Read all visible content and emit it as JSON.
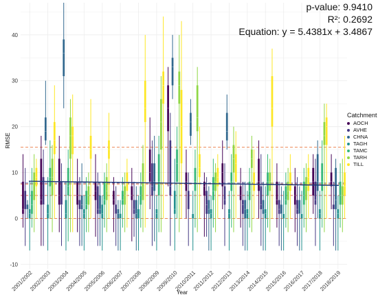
{
  "stats": {
    "pvalue": "p-value: 9.9410",
    "r2": "R²: 0.2692",
    "equation": "Equation: y = 5.4381x + 3.4867"
  },
  "chart_data": {
    "type": "box",
    "xlabel": "Year",
    "ylabel": "RMSE",
    "ylim": [
      -11,
      47
    ],
    "yticks": [
      -10,
      0,
      10,
      20,
      30,
      40
    ],
    "grid": true,
    "legend": {
      "title": "Catchment",
      "position": "right"
    },
    "categories": [
      "2001/2002",
      "2002/2003",
      "2003/2004",
      "2004/2005",
      "2005/2006",
      "2006/2007",
      "2007/2008",
      "2008/2009",
      "2009/2010",
      "2010/2011",
      "2011/2012",
      "2012/2013",
      "2013/2014",
      "2014/2015",
      "2015/2016",
      "2016/2017",
      "2017/2018",
      "2018/2019"
    ],
    "reference_lines": [
      15.5,
      7.5,
      5.0,
      0.0
    ],
    "trend_line": {
      "start": 8.1,
      "end": 7.2
    },
    "series": [
      {
        "name": "AOCH",
        "color": "#440154",
        "boxes": [
          [
            -2,
            1,
            2,
            8,
            14
          ],
          [
            -6,
            3,
            4,
            13,
            18
          ],
          [
            -3,
            3,
            5,
            13,
            18
          ],
          [
            -3,
            3,
            5,
            8,
            13
          ],
          [
            -4,
            4,
            6,
            8,
            14
          ],
          [
            -3,
            3,
            4,
            6,
            9
          ],
          [
            -5,
            4,
            5,
            7,
            11
          ],
          [
            2,
            8,
            10,
            15,
            22
          ],
          [
            7,
            19,
            24,
            29,
            33
          ],
          [
            0,
            6,
            8,
            10,
            15
          ],
          [
            -4,
            5,
            7,
            8,
            10
          ],
          [
            2,
            7,
            10,
            12,
            17
          ],
          [
            -2,
            4,
            5,
            7,
            11
          ],
          [
            0,
            6,
            8,
            13,
            17
          ],
          [
            -2,
            3,
            4,
            8,
            12
          ],
          [
            -3,
            3,
            5,
            7,
            11
          ],
          [
            1,
            5,
            8,
            11,
            14
          ],
          [
            2,
            7,
            8,
            10,
            14
          ]
        ]
      },
      {
        "name": "AVHE",
        "color": "#443983",
        "boxes": [
          [
            -6,
            2,
            2,
            6,
            11
          ],
          [
            -6,
            3,
            3,
            9,
            15
          ],
          [
            -6,
            3,
            3,
            8,
            12
          ],
          [
            -6,
            2,
            2,
            4,
            9
          ],
          [
            -6,
            1,
            2,
            7,
            10
          ],
          [
            -6,
            1,
            1,
            3,
            7
          ],
          [
            -4,
            1,
            2,
            4,
            8
          ],
          [
            -6,
            5,
            7,
            12,
            17
          ],
          [
            -6,
            5,
            7,
            17,
            23
          ],
          [
            -6,
            2,
            2,
            6,
            10
          ],
          [
            -4,
            1,
            3,
            6,
            9
          ],
          [
            -6,
            3,
            4,
            7,
            12
          ],
          [
            -6,
            1,
            3,
            4,
            8
          ],
          [
            -6,
            2,
            3,
            7,
            14
          ],
          [
            -6,
            1,
            2,
            4,
            8
          ],
          [
            -6,
            1,
            2,
            4,
            9
          ],
          [
            -6,
            3,
            4,
            8,
            13
          ],
          [
            -6,
            2,
            2,
            3,
            8
          ]
        ]
      },
      {
        "name": "CHNA",
        "color": "#31688e",
        "boxes": [
          [
            0,
            2,
            2,
            3,
            4
          ],
          [
            16,
            17,
            19,
            22,
            30
          ],
          [
            24,
            31,
            36,
            39,
            47
          ],
          [
            -6,
            2,
            3,
            5,
            12
          ],
          [
            -6,
            1,
            2,
            5,
            8
          ],
          [
            -7,
            0,
            1,
            2,
            4
          ],
          [
            -7,
            0,
            1,
            4,
            7
          ],
          [
            -5,
            6,
            8,
            12,
            18
          ],
          [
            26,
            29,
            33,
            35,
            40
          ],
          [
            16,
            18,
            21,
            23,
            26
          ],
          [
            -7,
            1,
            2,
            4,
            7
          ],
          [
            15,
            17,
            19,
            23,
            27
          ],
          [
            -7,
            0,
            2,
            4,
            8
          ],
          [
            -7,
            1,
            2,
            4,
            8
          ],
          [
            -7,
            1,
            1,
            3,
            7
          ],
          [
            -7,
            1,
            1,
            4,
            7
          ],
          [
            0,
            6,
            8,
            14,
            17
          ],
          [
            -7,
            2,
            4,
            11,
            13
          ]
        ]
      },
      {
        "name": "TAGH",
        "color": "#21908d",
        "boxes": [
          [
            -7,
            0,
            1,
            2,
            8
          ],
          [
            -7,
            0,
            1,
            3,
            9
          ],
          [
            -7,
            0,
            1,
            4,
            8
          ],
          [
            -7,
            0,
            1,
            2,
            5
          ],
          [
            -7,
            0,
            1,
            3,
            5
          ],
          [
            -7,
            0,
            0,
            1,
            4
          ],
          [
            -7,
            0,
            0,
            2,
            5
          ],
          [
            -7,
            0,
            1,
            2,
            5
          ],
          [
            -7,
            1,
            2,
            6,
            13
          ],
          [
            -7,
            0,
            1,
            1,
            6
          ],
          [
            -7,
            0,
            1,
            2,
            5
          ],
          [
            -7,
            0,
            1,
            2,
            6
          ],
          [
            -7,
            0,
            1,
            2,
            6
          ],
          [
            -7,
            0,
            1,
            2,
            7
          ],
          [
            -7,
            0,
            1,
            1,
            6
          ],
          [
            -7,
            0,
            1,
            1,
            6
          ],
          [
            -7,
            0,
            1,
            2,
            6
          ],
          [
            -7,
            0,
            1,
            2,
            5
          ]
        ]
      },
      {
        "name": "TAMC",
        "color": "#35b779",
        "boxes": [
          [
            -2,
            1,
            3,
            6,
            11
          ],
          [
            0,
            7,
            9,
            11,
            17
          ],
          [
            -5,
            5,
            7,
            11,
            15
          ],
          [
            -3,
            2,
            3,
            6,
            9
          ],
          [
            -2,
            3,
            4,
            8,
            10
          ],
          [
            -2,
            3,
            4,
            6,
            9
          ],
          [
            -2,
            3,
            5,
            7,
            10
          ],
          [
            -3,
            5,
            8,
            14,
            18
          ],
          [
            0,
            8,
            12,
            15,
            20
          ],
          [
            -2,
            6,
            8,
            11,
            15
          ],
          [
            -2,
            4,
            6,
            9,
            13
          ],
          [
            -2,
            6,
            8,
            10,
            14
          ],
          [
            -2,
            4,
            6,
            8,
            11
          ],
          [
            -2,
            5,
            8,
            10,
            14
          ],
          [
            -2,
            3,
            4,
            7,
            10
          ],
          [
            -2,
            3,
            5,
            8,
            11
          ],
          [
            -2,
            6,
            8,
            12,
            17
          ],
          [
            -2,
            3,
            5,
            8,
            12
          ]
        ]
      },
      {
        "name": "TARH",
        "color": "#8fd744",
        "boxes": [
          [
            -3,
            4,
            8,
            10,
            14
          ],
          [
            -3,
            5,
            9,
            13,
            16
          ],
          [
            -3,
            13,
            18,
            22,
            26
          ],
          [
            -3,
            3,
            5,
            7,
            10
          ],
          [
            -3,
            4,
            6,
            9,
            12
          ],
          [
            -3,
            3,
            5,
            7,
            10
          ],
          [
            -3,
            4,
            8,
            12,
            16
          ],
          [
            -3,
            15,
            21,
            26,
            31
          ],
          [
            -3,
            25,
            29,
            32,
            40
          ],
          [
            -3,
            19,
            22,
            29,
            33
          ],
          [
            -3,
            6,
            8,
            10,
            12
          ],
          [
            -3,
            10,
            13,
            16,
            20
          ],
          [
            -3,
            11,
            13,
            15,
            18
          ],
          [
            -3,
            6,
            8,
            10,
            13
          ],
          [
            -3,
            4,
            6,
            8,
            11
          ],
          [
            -3,
            4,
            7,
            9,
            12
          ],
          [
            -3,
            16,
            18,
            21,
            25
          ],
          [
            -3,
            3,
            5,
            7,
            13
          ]
        ]
      },
      {
        "name": "TILL",
        "color": "#fde725",
        "boxes": [
          [
            0,
            7,
            9,
            11,
            13
          ],
          [
            0,
            14,
            17,
            21,
            29
          ],
          [
            -3,
            14,
            18,
            20,
            27
          ],
          [
            0,
            13,
            15,
            18,
            26
          ],
          [
            0,
            13,
            15,
            17,
            23
          ],
          [
            -2,
            6,
            8,
            10,
            13
          ],
          [
            -2,
            21,
            24,
            30,
            40
          ],
          [
            0,
            25,
            29,
            32,
            44
          ],
          [
            0,
            12,
            20,
            28,
            43
          ],
          [
            0,
            9,
            11,
            14,
            20
          ],
          [
            0,
            7,
            9,
            11,
            14
          ],
          [
            0,
            8,
            12,
            14,
            19
          ],
          [
            0,
            6,
            8,
            10,
            15
          ],
          [
            0,
            20,
            24,
            31,
            37
          ],
          [
            0,
            6,
            8,
            10,
            14
          ],
          [
            0,
            6,
            9,
            11,
            14
          ],
          [
            0,
            16,
            20,
            22,
            25
          ],
          [
            0,
            5,
            7,
            10,
            18
          ]
        ]
      }
    ]
  }
}
